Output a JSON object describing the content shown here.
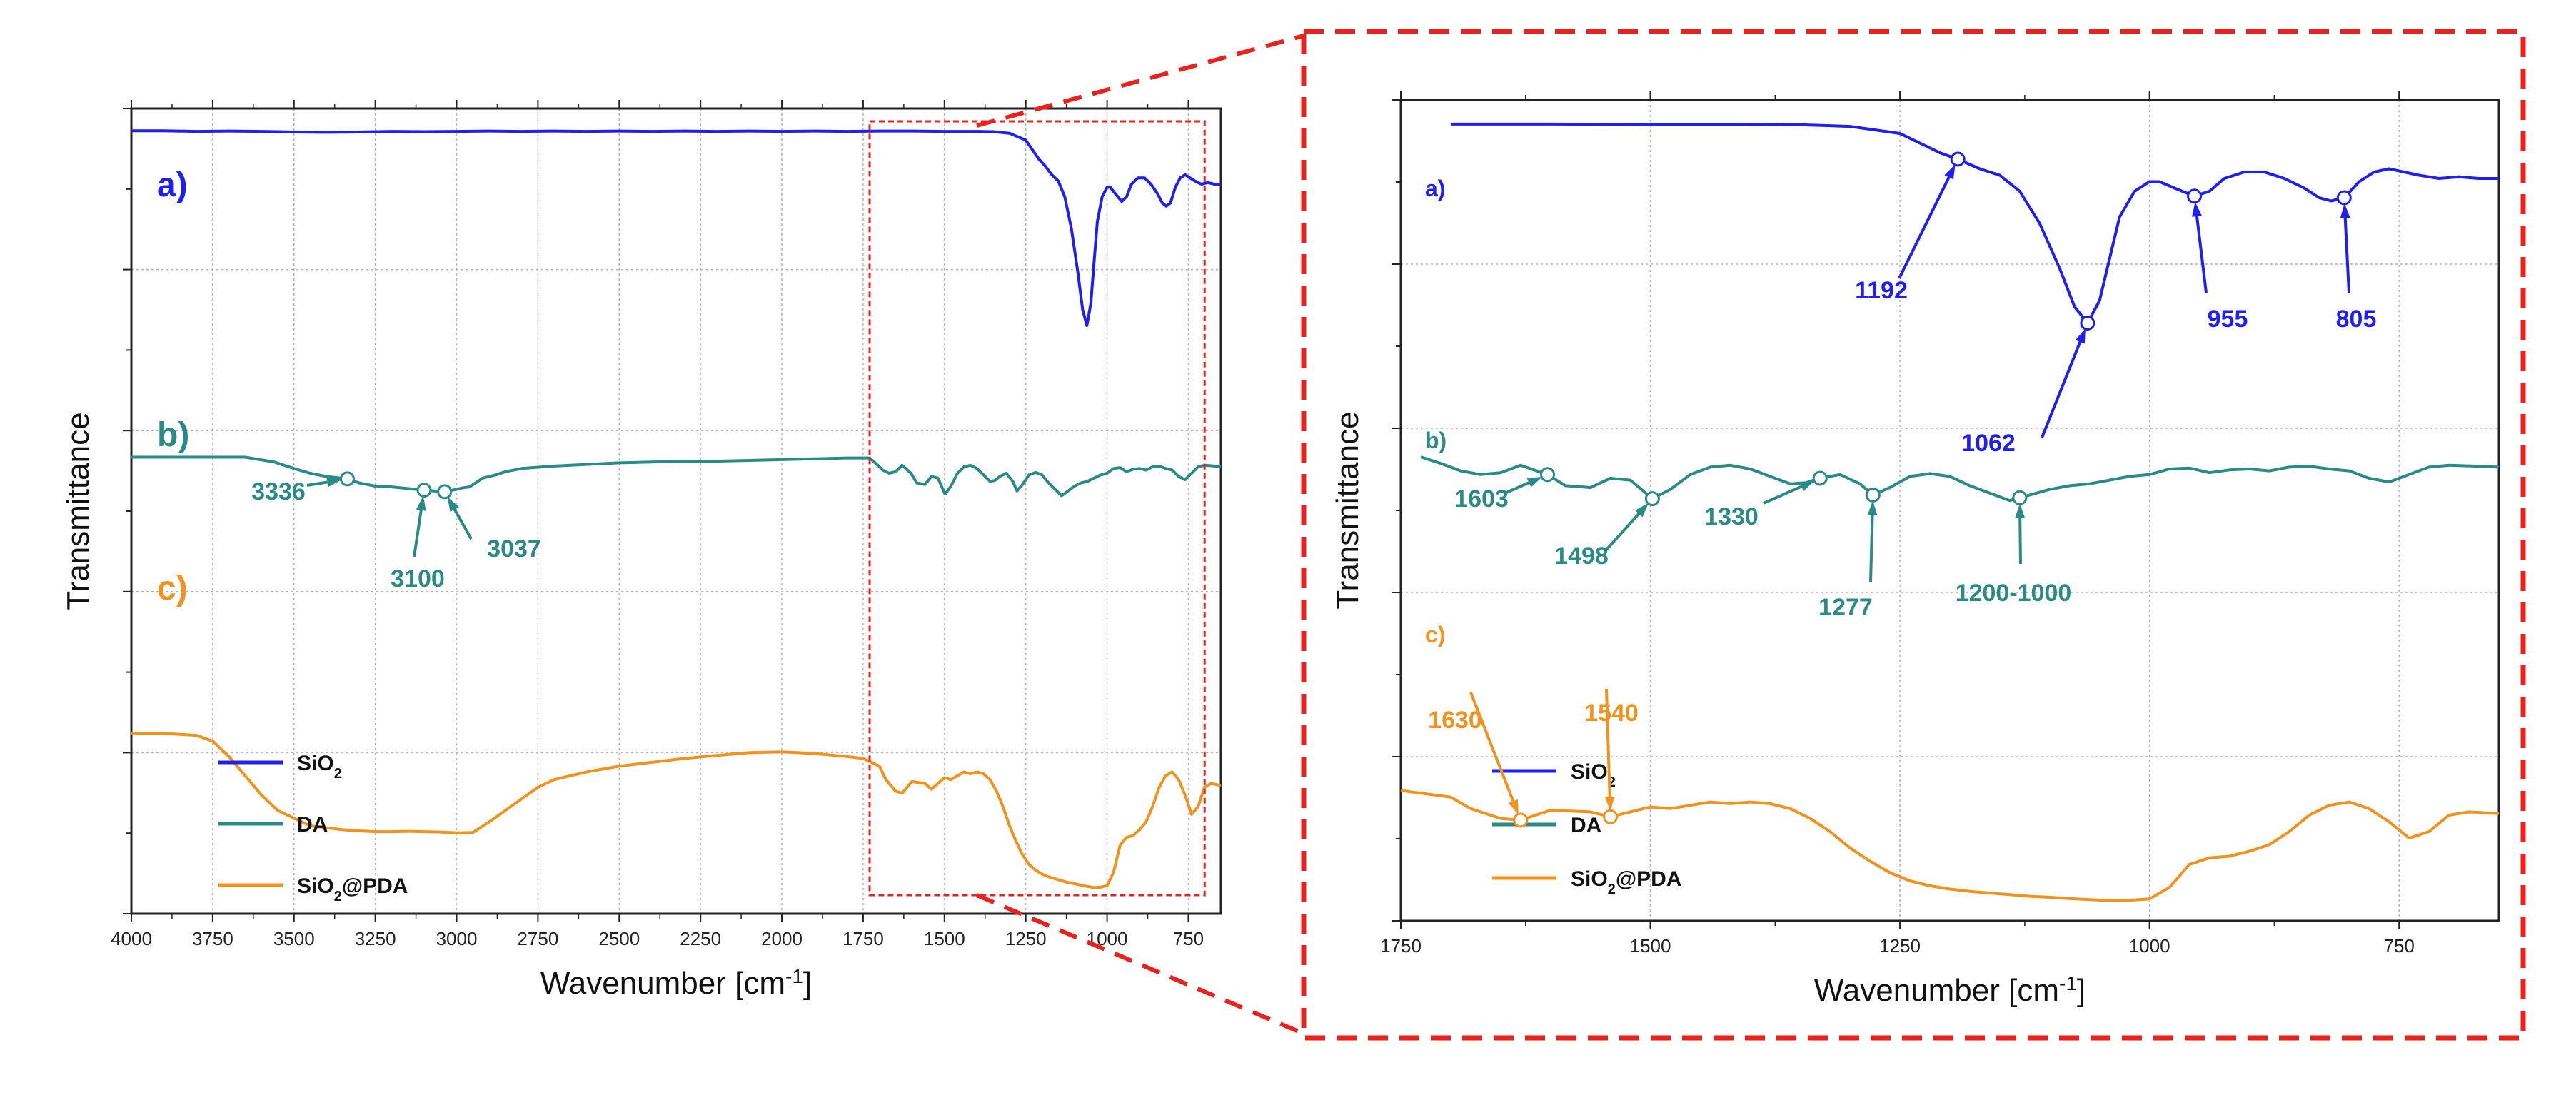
{
  "chart_data": [
    {
      "type": "line",
      "panel": "left",
      "title": "",
      "xlabel": "Wavenumber [cm⁻¹]",
      "ylabel": "Transmittance",
      "xlim": [
        4000,
        650
      ],
      "xticks": [
        "4000",
        "3750",
        "3500",
        "3250",
        "3000",
        "2750",
        "2500",
        "2250",
        "2000",
        "1750",
        "1500",
        "1250",
        "1000",
        "750"
      ],
      "grid": true,
      "legend": {
        "position": "bottom-left",
        "entries": [
          "SiO₂",
          "DA",
          "SiO₂@PDA"
        ]
      },
      "zoom_box_x": [
        1730,
        700
      ],
      "series": [
        {
          "name": "SiO₂",
          "label": "a)",
          "color": "#1f1fef",
          "x": [
            4000,
            3900,
            3800,
            3700,
            3600,
            3500,
            3400,
            3300,
            3200,
            3100,
            3000,
            2900,
            2800,
            2700,
            2600,
            2500,
            2400,
            2300,
            2200,
            2100,
            2000,
            1900,
            1800,
            1700,
            1600,
            1500,
            1400,
            1350,
            1300,
            1250,
            1230,
            1210,
            1192,
            1170,
            1150,
            1130,
            1110,
            1090,
            1075,
            1062,
            1050,
            1040,
            1030,
            1015,
            1000,
            990,
            975,
            955,
            940,
            925,
            905,
            885,
            865,
            845,
            830,
            818,
            805,
            790,
            775,
            760,
            745,
            730,
            710,
            690,
            670,
            650
          ],
          "y": [
            97,
            97,
            96.8,
            96.9,
            96.8,
            96.6,
            96.5,
            96.6,
            96.8,
            96.7,
            96.8,
            96.9,
            96.8,
            96.9,
            96.8,
            96.9,
            96.8,
            96.9,
            96.8,
            96.9,
            96.8,
            96.9,
            96.8,
            96.9,
            96.9,
            96.8,
            96.8,
            96.7,
            96.2,
            94,
            91,
            88,
            86,
            83,
            81,
            76,
            66,
            52,
            40,
            35,
            42,
            55,
            68,
            76,
            79,
            79,
            77,
            74.5,
            76,
            80,
            82,
            82,
            80,
            77,
            74,
            73,
            74,
            79,
            82,
            83,
            82,
            81,
            80,
            80.5,
            80,
            80
          ]
        },
        {
          "name": "DA",
          "label": "b)",
          "color": "#2a8a86",
          "x": [
            4000,
            3800,
            3650,
            3560,
            3500,
            3450,
            3400,
            3336,
            3300,
            3250,
            3200,
            3150,
            3100,
            3070,
            3037,
            3000,
            2980,
            2960,
            2920,
            2880,
            2850,
            2800,
            2700,
            2600,
            2500,
            2400,
            2300,
            2200,
            2100,
            2000,
            1900,
            1800,
            1730,
            1710,
            1690,
            1670,
            1650,
            1630,
            1603,
            1585,
            1560,
            1540,
            1520,
            1498,
            1480,
            1460,
            1440,
            1420,
            1400,
            1380,
            1360,
            1345,
            1330,
            1310,
            1290,
            1277,
            1260,
            1240,
            1220,
            1200,
            1180,
            1160,
            1140,
            1120,
            1100,
            1080,
            1060,
            1040,
            1020,
            1000,
            980,
            960,
            940,
            920,
            900,
            880,
            860,
            840,
            820,
            800,
            780,
            760,
            740,
            720,
            700,
            670,
            650
          ],
          "y": [
            62,
            62,
            62,
            59,
            55,
            52,
            50,
            48.5,
            46,
            44,
            43.5,
            42.5,
            41.5,
            41,
            40.5,
            42,
            43,
            43.5,
            49,
            51,
            53,
            55,
            56.5,
            57.5,
            58.5,
            59,
            59.5,
            59.5,
            60,
            60.5,
            61,
            61.5,
            61.5,
            58,
            54,
            52,
            53,
            57,
            52,
            46,
            45,
            50,
            49,
            39,
            44,
            52,
            56,
            57,
            55,
            51,
            47,
            47.5,
            50,
            52,
            47,
            41,
            45,
            51,
            52.5,
            51,
            46,
            42,
            38,
            41,
            44,
            46,
            47,
            49,
            51,
            52,
            55,
            55.5,
            53,
            54.5,
            55,
            54,
            56,
            56.5,
            55,
            54,
            50,
            48,
            52,
            56,
            57,
            56.5,
            56
          ]
        },
        {
          "name": "SiO₂@PDA",
          "label": "c)",
          "color": "#f0921e",
          "x": [
            4000,
            3900,
            3800,
            3750,
            3700,
            3650,
            3600,
            3550,
            3500,
            3450,
            3400,
            3350,
            3300,
            3250,
            3200,
            3150,
            3100,
            3050,
            3000,
            2950,
            2900,
            2850,
            2800,
            2750,
            2700,
            2600,
            2500,
            2400,
            2300,
            2200,
            2100,
            2000,
            1900,
            1800,
            1750,
            1700,
            1680,
            1650,
            1630,
            1600,
            1560,
            1540,
            1520,
            1500,
            1480,
            1460,
            1440,
            1420,
            1400,
            1380,
            1360,
            1340,
            1320,
            1300,
            1280,
            1260,
            1240,
            1220,
            1200,
            1180,
            1160,
            1140,
            1120,
            1100,
            1080,
            1060,
            1040,
            1020,
            1000,
            980,
            960,
            940,
            920,
            900,
            880,
            860,
            840,
            820,
            800,
            780,
            760,
            740,
            720,
            700,
            680,
            650
          ],
          "y": [
            44,
            44,
            43.5,
            42,
            38,
            33,
            28,
            24,
            22,
            20,
            19.5,
            19,
            18.7,
            18.5,
            18.5,
            18.6,
            18.5,
            18.4,
            18.2,
            18.3,
            21,
            24,
            27,
            30,
            32,
            34,
            35.5,
            36.5,
            37.5,
            38.3,
            39,
            39.2,
            38.8,
            38,
            37.5,
            35.5,
            32,
            29,
            28.5,
            31.5,
            31,
            29.5,
            31,
            32.5,
            32,
            33,
            34,
            33.5,
            34,
            33.5,
            32,
            29,
            25,
            20,
            16,
            12.5,
            10,
            8.5,
            7.5,
            6.8,
            6.3,
            5.8,
            5.3,
            5,
            4.6,
            4.3,
            4,
            4.1,
            4.5,
            8,
            15,
            17,
            17.5,
            19,
            21,
            25,
            30,
            33,
            34,
            32,
            28,
            23,
            25,
            30,
            31,
            30.5
          ]
        }
      ]
    },
    {
      "type": "line",
      "panel": "right",
      "title": "",
      "xlabel": "Wavenumber [cm⁻¹]",
      "ylabel": "Transmittance",
      "xlim": [
        1750,
        650
      ],
      "xticks": [
        "1750",
        "1500",
        "1250",
        "1000",
        "750"
      ],
      "grid": true,
      "legend": {
        "position": "bottom-left",
        "entries": [
          "SiO₂",
          "DA",
          "SiO₂@PDA"
        ]
      },
      "annotations": [
        {
          "series": "SiO₂",
          "x": 1192,
          "label": "1192"
        },
        {
          "series": "SiO₂",
          "x": 1062,
          "label": "1062"
        },
        {
          "series": "SiO₂",
          "x": 955,
          "label": "955"
        },
        {
          "series": "SiO₂",
          "x": 805,
          "label": "805"
        },
        {
          "series": "DA",
          "x": 1603,
          "label": "1603"
        },
        {
          "series": "DA",
          "x": 1498,
          "label": "1498"
        },
        {
          "series": "DA",
          "x": 1330,
          "label": "1330"
        },
        {
          "series": "DA",
          "x": 1277,
          "label": "1277"
        },
        {
          "series": "DA",
          "x": 1130,
          "label": "1200-1000"
        },
        {
          "series": "SiO₂@PDA",
          "x": 1630,
          "label": "1630"
        },
        {
          "series": "SiO₂@PDA",
          "x": 1540,
          "label": "1540"
        }
      ],
      "left_annotations": [
        {
          "series": "DA",
          "x": 3336,
          "label": "3336"
        },
        {
          "series": "DA",
          "x": 3100,
          "label": "3100"
        },
        {
          "series": "DA",
          "x": 3037,
          "label": "3037"
        }
      ]
    }
  ]
}
